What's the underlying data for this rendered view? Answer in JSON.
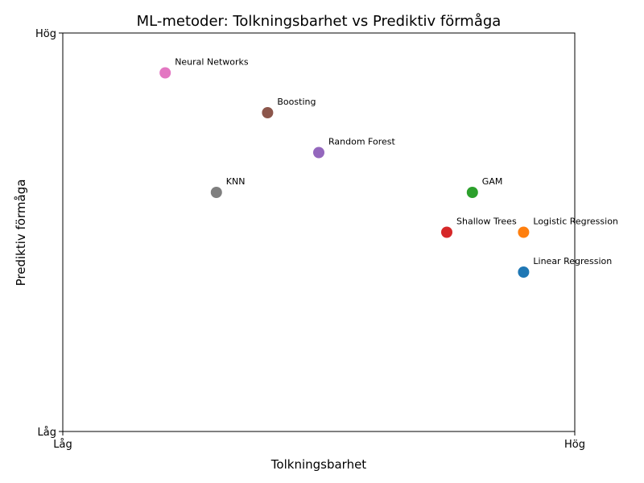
{
  "chart_data": {
    "type": "scatter",
    "title": "ML-metoder: Tolkningsbarhet vs Prediktiv förmåga",
    "xlabel": "Tolkningsbarhet",
    "ylabel": "Prediktiv förmåga",
    "xlim": [
      0,
      10
    ],
    "ylim": [
      0,
      10
    ],
    "xticks": [
      {
        "value": 0,
        "label": "Låg"
      },
      {
        "value": 10,
        "label": "Hög"
      }
    ],
    "yticks": [
      {
        "value": 0,
        "label": "Låg"
      },
      {
        "value": 10,
        "label": "Hög"
      }
    ],
    "grid": false,
    "points": [
      {
        "label": "Linear Regression",
        "x": 9,
        "y": 4,
        "color": "#1f77b4"
      },
      {
        "label": "Logistic Regression",
        "x": 9,
        "y": 5,
        "color": "#ff7f0e"
      },
      {
        "label": "GAM",
        "x": 8,
        "y": 6,
        "color": "#2ca02c"
      },
      {
        "label": "Shallow Trees",
        "x": 7.5,
        "y": 5,
        "color": "#d62728"
      },
      {
        "label": "Random Forest",
        "x": 5,
        "y": 7,
        "color": "#9467bd"
      },
      {
        "label": "Boosting",
        "x": 4,
        "y": 8,
        "color": "#8c564b"
      },
      {
        "label": "Neural Networks",
        "x": 2,
        "y": 9,
        "color": "#e377c2"
      },
      {
        "label": "KNN",
        "x": 3,
        "y": 6,
        "color": "#7f7f7f"
      }
    ]
  }
}
